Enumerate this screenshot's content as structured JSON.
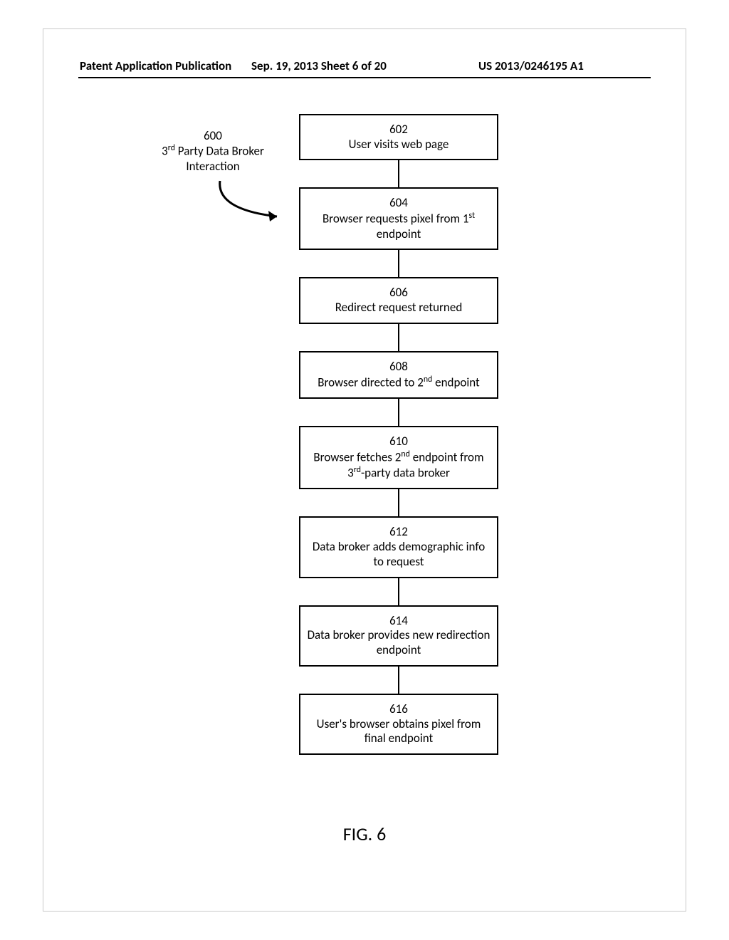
{
  "header": {
    "left": "Patent Application Publication",
    "middle": "Sep. 19, 2013  Sheet 6 of 20",
    "right": "US 2013/0246195 A1"
  },
  "diagram": {
    "type": "flowchart",
    "title_number": "600",
    "title_line1_html": "3<sup>rd</sup> Party Data Broker",
    "title_line2": "Interaction",
    "box_border_color": "#000000",
    "connector_color": "#000000",
    "background_color": "#ffffff",
    "font_family": "Calibri, Arial, sans-serif",
    "font_size_pt": 13,
    "nodes": [
      {
        "id": "602",
        "text": "User visits web page"
      },
      {
        "id": "604",
        "text_html": "Browser requests pixel from 1<sup>st</sup> endpoint"
      },
      {
        "id": "606",
        "text": "Redirect request returned"
      },
      {
        "id": "608",
        "text_html": "Browser directed to 2<sup>nd</sup> endpoint"
      },
      {
        "id": "610",
        "text_html": "Browser fetches 2<sup>nd</sup> endpoint from 3<sup>rd</sup>-party data broker"
      },
      {
        "id": "612",
        "text": "Data broker adds demographic info to request"
      },
      {
        "id": "614",
        "text": "Data broker provides new redirection endpoint"
      },
      {
        "id": "616",
        "text": "User's browser obtains pixel from final endpoint"
      }
    ],
    "edges": [
      [
        "602",
        "604"
      ],
      [
        "604",
        "606"
      ],
      [
        "606",
        "608"
      ],
      [
        "608",
        "610"
      ],
      [
        "610",
        "612"
      ],
      [
        "612",
        "614"
      ],
      [
        "614",
        "616"
      ]
    ]
  },
  "figure_label": "FIG. 6"
}
